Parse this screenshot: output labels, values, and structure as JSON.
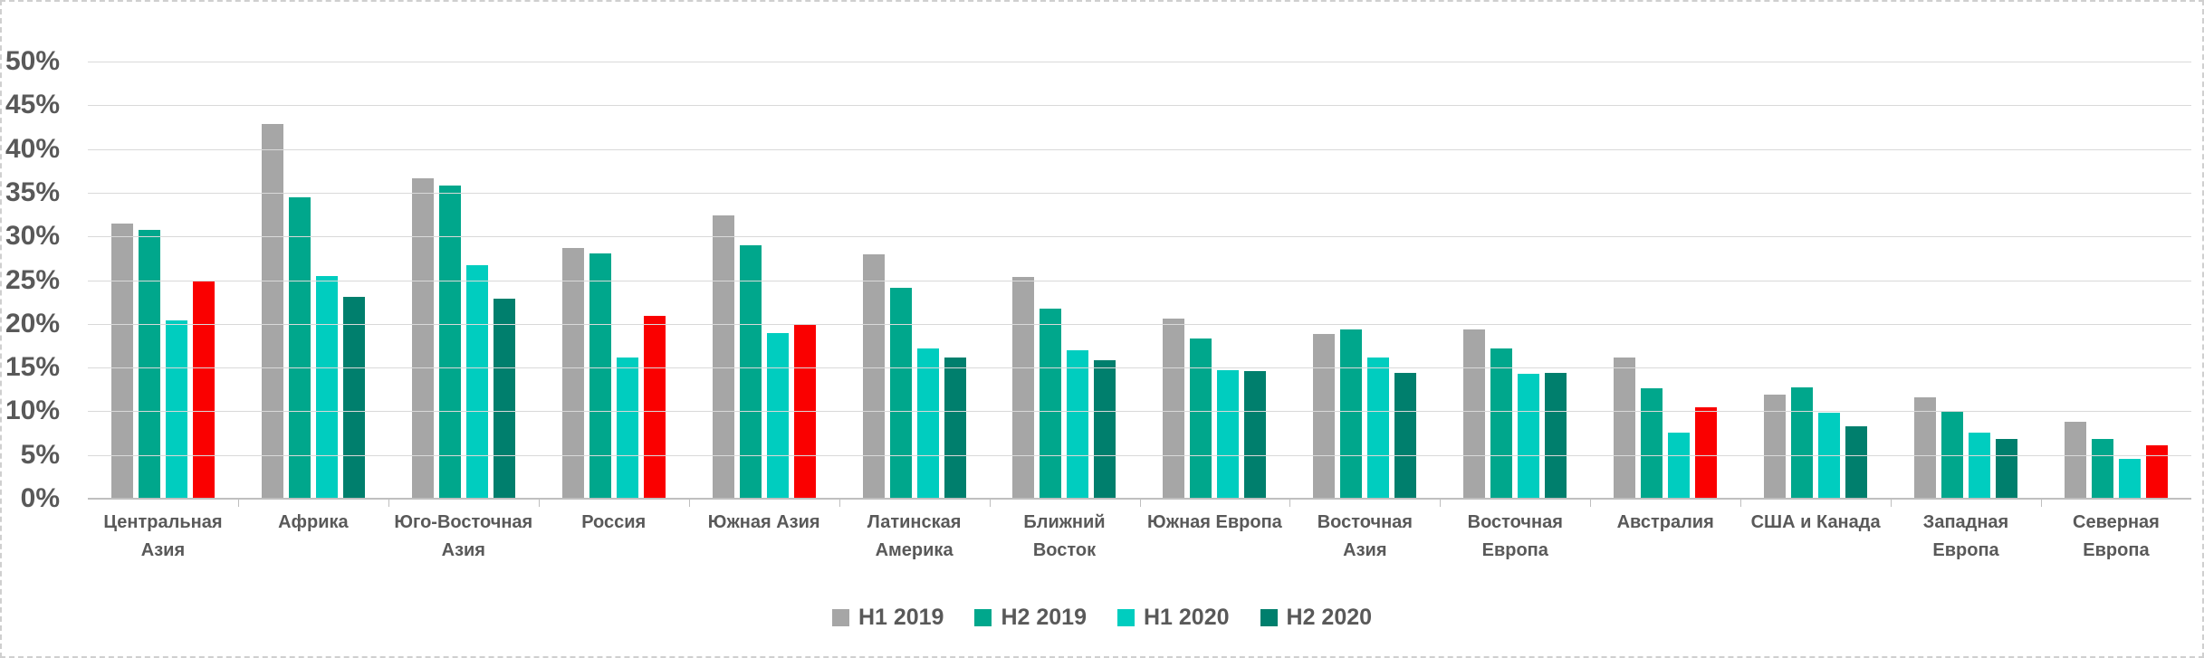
{
  "chart_data": {
    "type": "bar",
    "title": "",
    "xlabel": "",
    "ylabel": "",
    "ylim": [
      0,
      50
    ],
    "ytick_step": 5,
    "ytick_labels": [
      "0%",
      "5%",
      "10%",
      "15%",
      "20%",
      "25%",
      "30%",
      "35%",
      "40%",
      "45%",
      "50%"
    ],
    "grid": true,
    "legend_position": "bottom",
    "categories": [
      "Центральная Азия",
      "Африка",
      "Юго-Восточная Азия",
      "Россия",
      "Южная Азия",
      "Латинская Америка",
      "Ближний Восток",
      "Южная Европа",
      "Восточная Азия",
      "Восточная Европа",
      "Австралия",
      "США и Канада",
      "Западная Европа",
      "Северная Европа"
    ],
    "series": [
      {
        "name": "H1 2019",
        "color": "#a6a6a6",
        "values": [
          31.5,
          42.9,
          36.6,
          28.7,
          32.4,
          28.0,
          25.4,
          20.6,
          18.8,
          19.4,
          16.2,
          11.9,
          11.6,
          8.8
        ]
      },
      {
        "name": "H2 2019",
        "color": "#00a78c",
        "values": [
          30.7,
          34.5,
          35.8,
          28.1,
          29.0,
          24.1,
          21.7,
          18.3,
          19.4,
          17.2,
          12.6,
          12.7,
          10.0,
          6.8
        ]
      },
      {
        "name": "H1 2020",
        "color": "#00cdbf",
        "values": [
          20.4,
          25.5,
          26.7,
          16.2,
          18.9,
          17.2,
          17.0,
          14.7,
          16.1,
          14.3,
          7.6,
          9.8,
          7.6,
          4.6
        ]
      },
      {
        "name": "H2 2020",
        "color": "#007f6d",
        "values": [
          25.0,
          23.1,
          22.9,
          20.9,
          20.0,
          16.2,
          15.8,
          14.6,
          14.4,
          14.4,
          10.5,
          8.3,
          6.8,
          6.1
        ],
        "highlight_color": "#fa0000",
        "highlighted_category_indexes": [
          0,
          3,
          4,
          10,
          13
        ]
      }
    ],
    "colors": {
      "axis_text": "#595959",
      "gridline": "#d9d9d9",
      "axis_line": "#bfbfbf",
      "chart_border": "#cfcfcf",
      "highlight_red": "#fa0000"
    }
  }
}
